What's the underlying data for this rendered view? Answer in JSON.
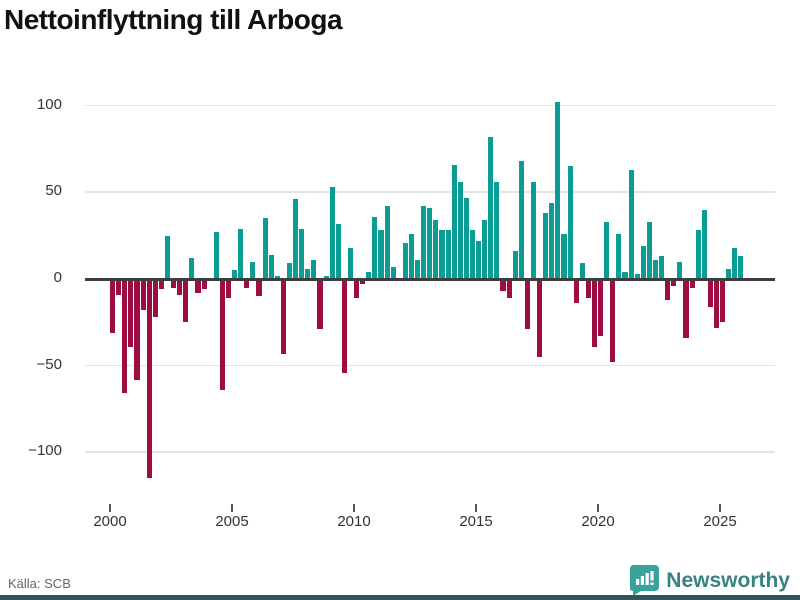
{
  "header": {
    "title": "Nettoinflyttning till Arboga"
  },
  "footer": {
    "source_label": "Källa: SCB",
    "logo_text": "Newsworthy",
    "logo_color": "#38a29b",
    "accent_bar_color": "#2f545c"
  },
  "colors": {
    "positive_bar": "#0a9d95",
    "negative_bar": "#9e0c42",
    "zero_line": "#3d3d3d",
    "gridline": "#e4e4e4"
  },
  "chart_data": {
    "type": "bar",
    "title": "Nettoinflyttning till Arboga",
    "x_start": "2000Q1",
    "frequency": "quarterly",
    "xlabel": "",
    "ylabel": "",
    "ylim": [
      -125,
      110
    ],
    "grid": true,
    "yticks": {
      "values": [
        100,
        50,
        0,
        -50,
        -100
      ],
      "labels": [
        "100",
        "50",
        "0",
        "−50",
        "−100"
      ]
    },
    "xticks": {
      "values": [
        2000,
        2005,
        2010,
        2015,
        2020,
        2025
      ],
      "labels": [
        "2000",
        "2005",
        "2010",
        "2015",
        "2020",
        "2025"
      ]
    },
    "values": [
      -31,
      -9,
      -66,
      -39,
      -58,
      -18,
      -115,
      -22,
      -6,
      25,
      -5,
      -9,
      -25,
      12,
      -8,
      -6,
      0,
      27,
      -64,
      -11,
      5,
      29,
      -5,
      10,
      -10,
      35,
      14,
      2,
      -43,
      9,
      46,
      29,
      6,
      11,
      -29,
      2,
      53,
      32,
      -54,
      18,
      -11,
      -3,
      4,
      36,
      28,
      42,
      7,
      0,
      21,
      26,
      11,
      42,
      41,
      34,
      28,
      28,
      66,
      56,
      47,
      28,
      22,
      34,
      82,
      56,
      -7,
      -11,
      16,
      68,
      -29,
      56,
      -45,
      38,
      44,
      102,
      26,
      65,
      -14,
      9,
      -11,
      -39,
      -33,
      33,
      -48,
      26,
      4,
      63,
      3,
      19,
      33,
      11,
      13,
      -12,
      -4,
      10,
      -34,
      -5,
      28,
      40,
      -16,
      -28,
      -25,
      6,
      18,
      13
    ]
  }
}
